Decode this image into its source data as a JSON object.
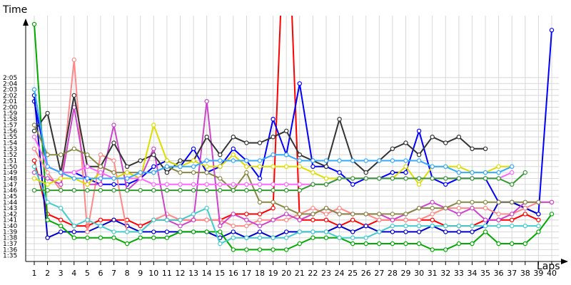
{
  "chart_data": {
    "type": "line",
    "title": "",
    "ylabel": "Time",
    "xlabel": "Laps",
    "x": [
      1,
      2,
      3,
      4,
      5,
      6,
      7,
      8,
      9,
      10,
      11,
      12,
      13,
      14,
      15,
      16,
      17,
      18,
      19,
      20,
      21,
      22,
      23,
      24,
      25,
      26,
      27,
      28,
      29,
      30,
      31,
      32,
      33,
      34,
      35,
      36,
      37,
      38,
      39,
      40
    ],
    "x_tick_labels": [
      "1",
      "2",
      "3",
      "4",
      "5",
      "6",
      "7",
      "8",
      "9",
      "10",
      "11",
      "12",
      "13",
      "14",
      "15",
      "16",
      "17",
      "18",
      "19",
      "20",
      "21",
      "22",
      "23",
      "24",
      "25",
      "26",
      "27",
      "28",
      "29",
      "30",
      "31",
      "32",
      "33",
      "34",
      "35",
      "36",
      "37",
      "38",
      "39",
      "40"
    ],
    "y_tick_labels": [
      "1:35",
      "1:36",
      "1:37",
      "1:38",
      "1:39",
      "1:40",
      "1:41",
      "1:42",
      "1:43",
      "1:44",
      "1:45",
      "1:46",
      "1:47",
      "1:48",
      "1:49",
      "1:50",
      "1:51",
      "1:52",
      "1:53",
      "1:54",
      "1:55",
      "1:56",
      "1:57",
      "1:58",
      "1:59",
      "2:00",
      "2:01",
      "2:02",
      "2:03",
      "2:04",
      "2:05"
    ],
    "y_unit": "seconds",
    "ylim": [
      94,
      134
    ],
    "grid": true,
    "legend": "none",
    "series": [
      {
        "color": "#ff0000",
        "values": [
          111,
          102,
          101,
          100,
          100,
          101,
          101,
          101,
          100,
          101,
          101,
          101,
          101,
          101,
          101,
          102,
          102,
          102,
          103,
          161,
          101,
          101,
          101,
          100,
          101,
          100,
          101,
          101,
          101,
          101,
          101,
          100,
          100,
          100,
          101,
          101,
          101,
          102,
          101,
          null
        ]
      },
      {
        "color": "#0000ff",
        "values": [
          121,
          110,
          109,
          109,
          108,
          107,
          107,
          107,
          108,
          110,
          111,
          110,
          113,
          109,
          110,
          113,
          111,
          108,
          118,
          112,
          124,
          110,
          110,
          109,
          107,
          108,
          108,
          109,
          109,
          116,
          108,
          107,
          108,
          108,
          108,
          104,
          104,
          103,
          102,
          133
        ]
      },
      {
        "color": "#0000cc",
        "values": [
          122,
          98,
          99,
          99,
          99,
          100,
          101,
          100,
          99,
          99,
          99,
          99,
          99,
          99,
          98,
          99,
          98,
          99,
          98,
          99,
          99,
          99,
          99,
          100,
          99,
          100,
          99,
          99,
          99,
          99,
          100,
          99,
          99,
          99,
          100,
          104,
          104,
          103,
          102,
          null
        ]
      },
      {
        "color": "#00aa00",
        "values": [
          134,
          101,
          100,
          98,
          98,
          98,
          98,
          97,
          98,
          98,
          98,
          99,
          99,
          99,
          99,
          96,
          96,
          96,
          96,
          96,
          97,
          98,
          98,
          98,
          97,
          97,
          97,
          97,
          97,
          97,
          96,
          96,
          97,
          97,
          99,
          97,
          97,
          97,
          99,
          102
        ]
      },
      {
        "color": "#ff8888",
        "values": [
          113,
          109,
          106,
          128,
          99,
          112,
          111,
          99,
          99,
          101,
          102,
          101,
          101,
          101,
          101,
          100,
          100,
          101,
          101,
          101,
          102,
          103,
          102,
          103,
          102,
          102,
          101,
          101,
          101,
          101,
          102,
          103,
          103,
          103,
          103,
          102,
          102,
          103,
          104,
          104
        ]
      },
      {
        "color": "#cc44cc",
        "values": [
          109,
          108,
          107,
          120,
          107,
          107,
          117,
          106,
          108,
          113,
          101,
          100,
          101,
          121,
          100,
          102,
          101,
          100,
          101,
          102,
          101,
          102,
          103,
          102,
          102,
          102,
          102,
          101,
          102,
          103,
          104,
          103,
          102,
          103,
          101,
          101,
          102,
          104,
          104,
          104
        ]
      },
      {
        "color": "#44cccc",
        "values": [
          110,
          104,
          103,
          100,
          101,
          100,
          99,
          99,
          99,
          101,
          101,
          101,
          102,
          103,
          97,
          98,
          98,
          98,
          98,
          98,
          99,
          99,
          99,
          98,
          98,
          98,
          99,
          100,
          100,
          100,
          100,
          100,
          100,
          100,
          100,
          100,
          100,
          100,
          100,
          null
        ]
      },
      {
        "color": "#333333",
        "values": [
          116,
          119,
          109,
          122,
          110,
          110,
          114,
          110,
          111,
          112,
          109,
          111,
          111,
          115,
          112,
          115,
          114,
          114,
          115,
          116,
          112,
          111,
          110,
          118,
          111,
          109,
          111,
          113,
          114,
          112,
          115,
          114,
          115,
          113,
          113,
          null,
          null,
          null,
          null,
          null
        ]
      },
      {
        "color": "#888844",
        "values": [
          117,
          112,
          112,
          113,
          112,
          110,
          109,
          109,
          109,
          109,
          110,
          109,
          109,
          109,
          108,
          106,
          109,
          104,
          104,
          103,
          102,
          102,
          103,
          102,
          102,
          102,
          102,
          102,
          102,
          103,
          103,
          103,
          104,
          104,
          104,
          104,
          104,
          104,
          104,
          null
        ]
      },
      {
        "color": "#dddd00",
        "values": [
          108,
          107,
          108,
          108,
          107,
          109,
          108,
          109,
          108,
          117,
          111,
          110,
          111,
          110,
          110,
          112,
          110,
          110,
          110,
          110,
          110,
          109,
          108,
          108,
          108,
          108,
          108,
          108,
          110,
          107,
          110,
          110,
          110,
          109,
          109,
          110,
          110,
          null,
          null,
          null
        ]
      },
      {
        "color": "#ff66ff",
        "values": [
          115,
          110,
          109,
          109,
          110,
          109,
          108,
          108,
          108,
          107,
          107,
          107,
          107,
          107,
          107,
          107,
          107,
          107,
          107,
          107,
          107,
          107,
          107,
          108,
          108,
          108,
          108,
          108,
          108,
          108,
          108,
          108,
          108,
          108,
          108,
          108,
          109,
          null,
          null,
          null
        ]
      },
      {
        "color": "#33aaff",
        "values": [
          123,
          110,
          109,
          108,
          108,
          108,
          108,
          108,
          109,
          109,
          110,
          110,
          110,
          111,
          111,
          111,
          111,
          111,
          112,
          112,
          111,
          111,
          111,
          111,
          111,
          111,
          111,
          111,
          111,
          111,
          110,
          110,
          109,
          109,
          109,
          109,
          110,
          null,
          null,
          null
        ]
      },
      {
        "color": "#339933",
        "values": [
          106,
          106,
          106,
          106,
          106,
          106,
          106,
          106,
          106,
          106,
          106,
          106,
          106,
          106,
          106,
          106,
          106,
          106,
          106,
          106,
          106,
          107,
          107,
          108,
          108,
          108,
          108,
          108,
          108,
          108,
          108,
          108,
          108,
          108,
          108,
          108,
          107,
          109,
          null,
          null
        ]
      }
    ]
  }
}
